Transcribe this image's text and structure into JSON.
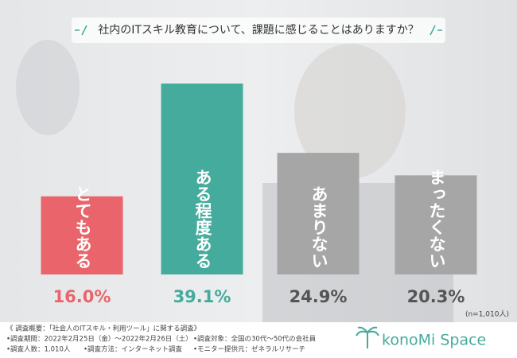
{
  "chart_data": {
    "type": "bar",
    "title": "社内のITスキル教育について、課題に感じることはありますか？",
    "categories": [
      "とてもある",
      "ある程度ある",
      "あまりない",
      "まったくない"
    ],
    "values": [
      16.0,
      39.1,
      24.9,
      20.3
    ],
    "value_labels": [
      "16.0%",
      "39.1%",
      "24.9%",
      "20.3%"
    ],
    "colors": [
      "#e9656b",
      "#45ab9c",
      "#a6a6a6",
      "#a6a6a6"
    ],
    "label_colors": [
      "#e9656b",
      "#45ab9c",
      "#555555",
      "#555555"
    ],
    "note": "(n=1,010人)"
  },
  "footer": {
    "lines": [
      "《 調査概要：「社会人のITスキル・利用ツール」に関する調査》",
      "•調査期間：2022年2月25日（金）〜2022年2月26日（土）",
      "•調査人数：1,010人",
      "•調査方法：インターネット調査",
      "•調査対象：全国の30代〜50代の会社員",
      "•モニター提供元：ゼネラルリサーチ"
    ],
    "logo": "konoMi Space"
  }
}
